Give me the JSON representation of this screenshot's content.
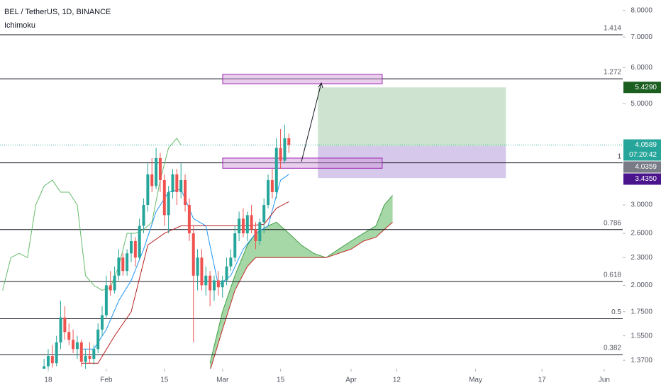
{
  "chart_data": {
    "type": "candlestick",
    "title": "BEL / TetherUS, 1D, BINANCE",
    "indicator": "Ichimoku",
    "log_scale": true,
    "xlim": [
      6.38,
      156.46
    ],
    "ylim": [
      1.313,
      8.437
    ],
    "xticks": [
      {
        "value": 18,
        "label": "18"
      },
      {
        "value": 32,
        "label": "Feb"
      },
      {
        "value": 46,
        "label": "15"
      },
      {
        "value": 60,
        "label": "Mar"
      },
      {
        "value": 74,
        "label": "15"
      },
      {
        "value": 91,
        "label": "Apr"
      },
      {
        "value": 102,
        "label": "12"
      },
      {
        "value": 121,
        "label": "May"
      },
      {
        "value": 137,
        "label": "17"
      },
      {
        "value": 152,
        "label": "Jun"
      }
    ],
    "yticks": [
      {
        "value": 8,
        "label": "8.0000"
      },
      {
        "value": 7,
        "label": "7.0000"
      },
      {
        "value": 6,
        "label": "6.0000"
      },
      {
        "value": 5,
        "label": "5.0000"
      },
      {
        "value": 3,
        "label": "3.0000"
      },
      {
        "value": 2.6,
        "label": "2.6000"
      },
      {
        "value": 2.3,
        "label": "2.3000"
      },
      {
        "value": 2,
        "label": "2.0000"
      },
      {
        "value": 1.75,
        "label": "1.7500"
      },
      {
        "value": 1.55,
        "label": "1.5500"
      },
      {
        "value": 1.37,
        "label": "1.3700"
      }
    ],
    "up_color": "#26a69a",
    "down_color": "#ef5350",
    "candles": {
      "x": [
        17,
        18,
        19,
        20,
        21,
        22,
        23,
        24,
        25,
        26,
        27,
        28,
        29,
        30,
        31,
        32,
        33,
        34,
        35,
        36,
        37,
        38,
        39,
        40,
        41,
        42,
        43,
        44,
        45,
        46,
        47,
        48,
        49,
        50,
        51,
        52,
        53,
        54,
        55,
        56,
        57,
        58,
        59,
        60,
        61,
        62,
        63,
        64,
        65,
        66,
        67,
        68,
        69,
        70,
        71,
        72,
        73,
        74,
        75,
        76
      ],
      "open": [
        1.3,
        1.33,
        1.4,
        1.35,
        1.5,
        1.7,
        1.58,
        1.52,
        1.45,
        1.5,
        1.36,
        1.4,
        1.38,
        1.45,
        1.6,
        1.72,
        2.0,
        1.95,
        2.1,
        2.3,
        2.15,
        2.35,
        2.5,
        2.3,
        2.7,
        3.0,
        3.5,
        3.3,
        3.8,
        3.4,
        2.85,
        3.2,
        3.5,
        3.2,
        3.4,
        3.0,
        2.6,
        2.1,
        2.3,
        2.0,
        2.1,
        1.95,
        2.05,
        1.98,
        2.05,
        2.2,
        2.3,
        2.6,
        2.8,
        2.6,
        2.85,
        2.65,
        2.5,
        2.75,
        3.0,
        3.4,
        3.2,
        4.0,
        3.75,
        4.2
      ],
      "high": [
        1.38,
        1.45,
        1.48,
        1.55,
        1.85,
        1.8,
        1.65,
        1.6,
        1.55,
        1.52,
        1.45,
        1.5,
        1.48,
        1.65,
        1.8,
        2.1,
        2.15,
        2.2,
        2.4,
        2.35,
        2.4,
        2.6,
        2.55,
        2.8,
        3.1,
        3.7,
        3.8,
        4.0,
        3.9,
        3.5,
        3.3,
        3.6,
        3.6,
        3.7,
        3.5,
        3.1,
        2.7,
        2.4,
        2.4,
        2.2,
        2.15,
        2.1,
        2.15,
        2.1,
        2.3,
        2.4,
        2.7,
        2.9,
        2.95,
        2.9,
        3.0,
        2.75,
        2.8,
        3.1,
        3.5,
        3.6,
        4.2,
        4.4,
        4.5,
        4.3
      ],
      "low": [
        1.28,
        1.3,
        1.32,
        1.33,
        1.45,
        1.52,
        1.48,
        1.42,
        1.38,
        1.33,
        1.3,
        1.35,
        1.34,
        1.42,
        1.55,
        1.7,
        1.9,
        1.92,
        2.05,
        2.1,
        2.1,
        2.25,
        2.2,
        2.28,
        2.6,
        2.9,
        3.2,
        3.25,
        3.2,
        2.7,
        2.6,
        3.1,
        3.0,
        3.1,
        2.9,
        2.5,
        1.5,
        1.95,
        1.95,
        1.9,
        1.8,
        1.85,
        1.9,
        1.88,
        2.0,
        2.15,
        2.25,
        2.5,
        2.55,
        2.5,
        2.6,
        2.4,
        2.45,
        2.6,
        2.95,
        3.1,
        3.1,
        3.6,
        3.7,
        3.9
      ],
      "close": [
        1.33,
        1.4,
        1.35,
        1.5,
        1.7,
        1.58,
        1.52,
        1.45,
        1.5,
        1.36,
        1.4,
        1.38,
        1.45,
        1.6,
        1.72,
        2.0,
        1.95,
        2.1,
        2.3,
        2.15,
        2.35,
        2.5,
        2.3,
        2.7,
        3.0,
        3.5,
        3.3,
        3.8,
        3.4,
        2.85,
        3.2,
        3.5,
        3.2,
        3.4,
        3.0,
        2.6,
        2.1,
        2.3,
        2.0,
        2.1,
        1.95,
        2.05,
        1.98,
        2.05,
        2.2,
        2.3,
        2.6,
        2.8,
        2.6,
        2.85,
        2.65,
        2.5,
        2.75,
        3.0,
        3.4,
        3.2,
        4.0,
        3.75,
        4.2,
        4.06
      ]
    },
    "lines": [
      {
        "color": "#66bb6a",
        "x": [
          7,
          9,
          11,
          13,
          15,
          17,
          19,
          21,
          23,
          25,
          27,
          29,
          31,
          33,
          35,
          37,
          39,
          41,
          43,
          45,
          47,
          49,
          50
        ],
        "values": [
          1.95,
          2.3,
          2.35,
          2.3,
          3.0,
          3.3,
          3.4,
          3.2,
          3.2,
          3.0,
          2.1,
          2.0,
          1.95,
          1.98,
          2.2,
          2.6,
          2.6,
          2.65,
          2.75,
          3.4,
          4.0,
          4.2,
          4.06
        ]
      },
      {
        "color": "#2196f3",
        "x": [
          26,
          29,
          32,
          35,
          38,
          41,
          44,
          47,
          50,
          53,
          56,
          59,
          62,
          65,
          68,
          71,
          74,
          76
        ],
        "values": [
          1.45,
          1.45,
          1.6,
          1.85,
          2.05,
          2.4,
          2.9,
          3.2,
          3.25,
          2.8,
          2.7,
          2.0,
          2.1,
          2.4,
          2.6,
          2.7,
          3.4,
          3.5
        ]
      },
      {
        "color": "#b71c1c",
        "x": [
          26,
          30,
          34,
          38,
          42,
          46,
          50,
          54,
          58,
          62,
          66,
          70,
          73,
          76
        ],
        "values": [
          1.35,
          1.35,
          1.55,
          1.75,
          2.45,
          2.6,
          2.7,
          2.7,
          2.7,
          2.7,
          2.7,
          2.72,
          2.95,
          3.05
        ]
      }
    ],
    "cloud": {
      "fill": "rgba(76,175,80,0.5)",
      "x": [
        57,
        60,
        63,
        66,
        68,
        71,
        73,
        76,
        79,
        82,
        85,
        88,
        91,
        94,
        97,
        99,
        101
      ],
      "span_a": {
        "color": "#43a047",
        "values": [
          1.35,
          1.75,
          2.1,
          2.45,
          2.6,
          2.7,
          2.75,
          2.6,
          2.45,
          2.35,
          2.3,
          2.4,
          2.5,
          2.6,
          2.7,
          3.0,
          3.15
        ]
      },
      "span_b": {
        "color": "#c62828",
        "values": [
          1.3,
          1.6,
          1.95,
          2.2,
          2.3,
          2.3,
          2.3,
          2.3,
          2.3,
          2.3,
          2.3,
          2.35,
          2.4,
          2.5,
          2.55,
          2.65,
          2.75
        ]
      }
    },
    "fib_levels": [
      {
        "ratio": 1.414,
        "price": 7.08
      },
      {
        "ratio": 1.272,
        "price": 5.67
      },
      {
        "ratio": 1,
        "price": 3.71
      },
      {
        "ratio": 0.786,
        "price": 2.65
      },
      {
        "ratio": 0.618,
        "price": 2.04
      },
      {
        "ratio": 0.5,
        "price": 1.69
      },
      {
        "ratio": 0.382,
        "price": 1.41
      }
    ],
    "zones": [
      {
        "x": [
          60.05,
          98.5
        ],
        "top": 5.8,
        "bottom": 5.53
      },
      {
        "x": [
          60.05,
          98.5
        ],
        "top": 3.8,
        "bottom": 3.61
      }
    ],
    "position": {
      "x": [
        83,
        128.3
      ],
      "target": 5.429,
      "entry": 4.0359,
      "stop": 3.435
    },
    "last_price": 4.0589,
    "countdown": "07:20:42",
    "price_tags": [
      {
        "value": 5.429,
        "label": "5.4290",
        "color": "#1b5e20"
      },
      {
        "value": 4.0589,
        "label": "4.0589",
        "color": "#26a69a"
      },
      {
        "value": 4.0359,
        "label": "4.0359",
        "color": "#787b86"
      },
      {
        "value": 3.435,
        "label": "3.4350",
        "color": "#4a148c"
      }
    ]
  }
}
